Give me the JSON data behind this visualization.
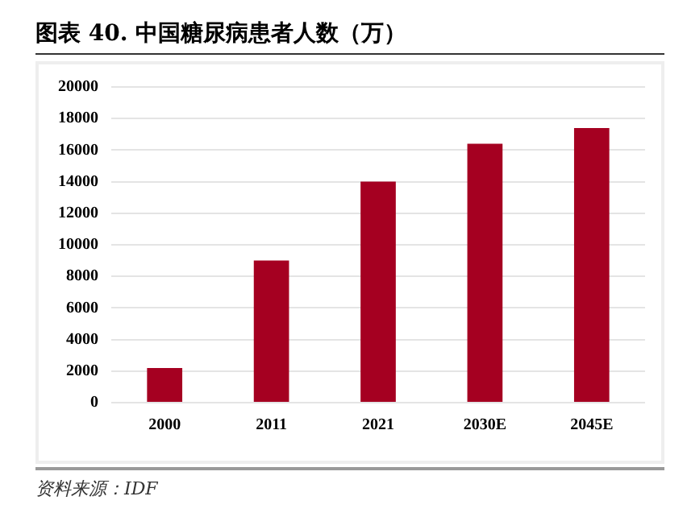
{
  "chart_data": {
    "type": "bar",
    "title": "图表 40. 中国糖尿病患者人数（万）",
    "categories": [
      "2000",
      "2011",
      "2021",
      "2030E",
      "2045E"
    ],
    "values": [
      2200,
      9000,
      14000,
      16400,
      17400
    ],
    "color": "#a50021",
    "ylim": [
      0,
      20000
    ],
    "yticks": [
      0,
      2000,
      4000,
      6000,
      8000,
      10000,
      12000,
      14000,
      16000,
      18000,
      20000
    ],
    "grid": "y",
    "annotations": [
      "资料来源：IDF"
    ]
  }
}
